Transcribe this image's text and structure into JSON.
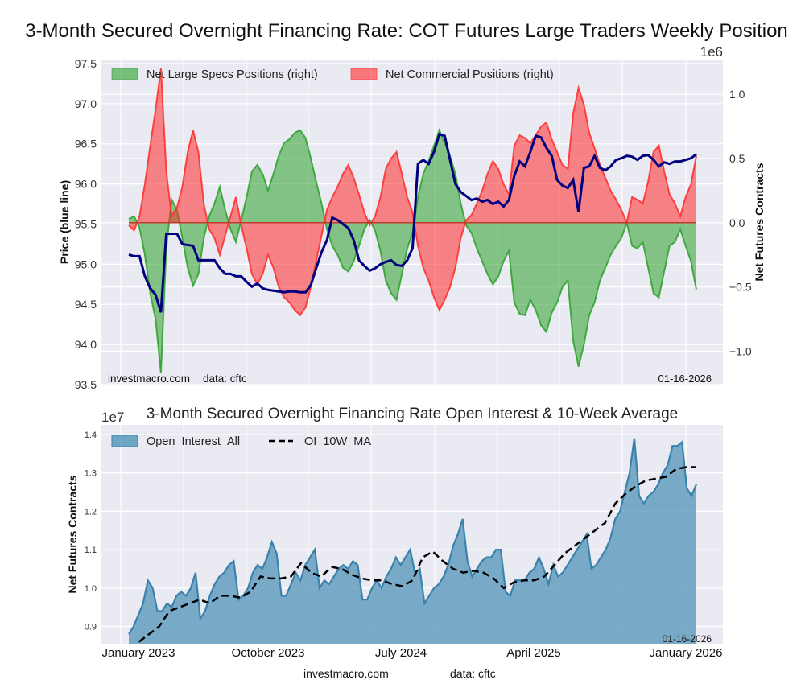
{
  "chart_data": [
    {
      "type": "area",
      "title": "3-Month Secured Overnight Financing Rate: COT Futures Large Traders Weekly Position",
      "ylabel_left": "Price (blue line)",
      "ylabel_right": "Net Futures Contracts",
      "right_axis_offset_label": "1e6",
      "ylim_left": [
        93.5,
        97.55
      ],
      "ylim_right": [
        -1.26,
        1.27
      ],
      "yticks_left": [
        "97.5",
        "97.0",
        "96.5",
        "96.0",
        "95.5",
        "95.0",
        "94.5",
        "94.0",
        "93.5"
      ],
      "yticks_right": [
        "1.0",
        "0.5",
        "0.0",
        "−0.5",
        "−1.0"
      ],
      "watermark": "investmacro.com",
      "source": "data: cftc",
      "date_label": "01-16-2026",
      "legend": [
        {
          "label": "Net Large Specs Positions (right)",
          "color": "#2ca02c"
        },
        {
          "label": "Net Commercial Positions (right)",
          "color": "#ff2a2a"
        }
      ],
      "x_range": [
        "2022-12-20",
        "2026-01-16"
      ],
      "series": [
        {
          "name": "Net Large Specs Positions",
          "unit": "1e6 contracts",
          "values": [
            0.03,
            0.05,
            -0.04,
            -0.25,
            -0.55,
            -0.75,
            -1.17,
            -0.2,
            0.18,
            0.1,
            -0.12,
            -0.35,
            -0.49,
            -0.4,
            -0.12,
            0.05,
            0.15,
            0.28,
            0.1,
            -0.05,
            -0.15,
            0.02,
            0.2,
            0.4,
            0.45,
            0.38,
            0.25,
            0.38,
            0.52,
            0.62,
            0.65,
            0.7,
            0.72,
            0.66,
            0.5,
            0.32,
            0.15,
            -0.05,
            -0.18,
            -0.25,
            -0.35,
            -0.38,
            -0.3,
            -0.18,
            -0.05,
            0.02,
            -0.06,
            -0.22,
            -0.45,
            -0.55,
            -0.6,
            -0.4,
            -0.2,
            -0.08,
            0.2,
            0.38,
            0.48,
            0.6,
            0.72,
            0.62,
            0.52,
            0.38,
            0.15,
            -0.02,
            -0.08,
            -0.2,
            -0.3,
            -0.4,
            -0.48,
            -0.42,
            -0.3,
            -0.22,
            -0.62,
            -0.71,
            -0.72,
            -0.6,
            -0.68,
            -0.8,
            -0.85,
            -0.7,
            -0.62,
            -0.5,
            -0.45,
            -0.92,
            -1.12,
            -0.95,
            -0.72,
            -0.62,
            -0.45,
            -0.35,
            -0.25,
            -0.18,
            -0.12,
            0.0,
            -0.18,
            -0.2,
            -0.15,
            -0.35,
            -0.55,
            -0.58,
            -0.38,
            -0.18,
            -0.15,
            -0.05,
            -0.18,
            -0.3,
            -0.52
          ]
        },
        {
          "name": "Net Commercial Positions",
          "unit": "1e6 contracts",
          "values": [
            -0.02,
            -0.06,
            0.05,
            0.3,
            0.6,
            0.88,
            1.2,
            0.4,
            0.05,
            0.12,
            0.28,
            0.55,
            0.72,
            0.55,
            0.15,
            -0.05,
            -0.12,
            -0.25,
            -0.1,
            0.05,
            0.2,
            -0.02,
            -0.2,
            -0.4,
            -0.48,
            -0.4,
            -0.25,
            -0.35,
            -0.5,
            -0.58,
            -0.62,
            -0.68,
            -0.72,
            -0.66,
            -0.5,
            -0.3,
            -0.1,
            0.1,
            0.2,
            0.28,
            0.38,
            0.45,
            0.35,
            0.22,
            0.08,
            -0.02,
            0.05,
            0.2,
            0.42,
            0.5,
            0.55,
            0.38,
            0.2,
            0.08,
            -0.18,
            -0.35,
            -0.45,
            -0.58,
            -0.68,
            -0.6,
            -0.5,
            -0.35,
            -0.12,
            0.02,
            0.06,
            0.15,
            0.25,
            0.38,
            0.48,
            0.42,
            0.3,
            0.22,
            0.6,
            0.68,
            0.66,
            0.62,
            0.68,
            0.75,
            0.78,
            0.65,
            0.55,
            0.45,
            0.42,
            0.85,
            1.05,
            0.92,
            0.7,
            0.58,
            0.45,
            0.35,
            0.25,
            0.18,
            0.1,
            0.0,
            0.2,
            0.18,
            0.15,
            0.32,
            0.55,
            0.6,
            0.4,
            0.22,
            0.15,
            0.05,
            0.2,
            0.3,
            0.52
          ]
        },
        {
          "name": "Price",
          "axis": "left",
          "values": [
            95.12,
            95.1,
            95.1,
            94.85,
            94.7,
            94.62,
            94.4,
            95.38,
            95.38,
            95.38,
            95.25,
            95.24,
            95.23,
            95.05,
            95.05,
            95.05,
            95.05,
            94.95,
            94.88,
            94.88,
            94.85,
            94.85,
            94.78,
            94.72,
            94.76,
            94.7,
            94.68,
            94.67,
            94.66,
            94.65,
            94.66,
            94.66,
            94.65,
            94.65,
            94.74,
            94.95,
            95.15,
            95.3,
            95.58,
            95.55,
            95.5,
            95.45,
            95.3,
            95.05,
            94.98,
            94.92,
            94.95,
            95.0,
            95.03,
            95.05,
            94.99,
            94.98,
            95.05,
            95.2,
            96.25,
            96.3,
            96.25,
            96.4,
            96.62,
            96.6,
            96.3,
            96.0,
            95.9,
            95.85,
            95.8,
            95.82,
            95.78,
            95.8,
            95.75,
            95.78,
            95.72,
            95.8,
            96.1,
            96.28,
            96.22,
            96.4,
            96.6,
            96.58,
            96.45,
            96.35,
            96.05,
            95.98,
            95.95,
            96.05,
            95.65,
            96.2,
            96.22,
            96.35,
            96.2,
            96.17,
            96.22,
            96.3,
            96.32,
            96.35,
            96.34,
            96.3,
            96.35,
            96.36,
            96.3,
            96.22,
            96.27,
            96.25,
            96.28,
            96.28,
            96.3,
            96.32,
            96.37
          ]
        }
      ]
    },
    {
      "type": "area",
      "title": "3-Month Secured Overnight Financing Rate Open Interest & 10-Week Average",
      "ylabel": "Net Futures Contracts",
      "axis_offset_label": "1e7",
      "ylim": [
        0.855,
        1.425
      ],
      "yticks": [
        "1.4",
        "1.3",
        "1.2",
        "1.1",
        "1.0",
        "0.9"
      ],
      "xticks": [
        "January 2023",
        "October 2023",
        "July 2024",
        "April 2025",
        "January 2026"
      ],
      "date_label": "01-16-2026",
      "legend": [
        {
          "label": "Open_Interest_All",
          "color": "#5b9abd"
        },
        {
          "label": "OI_10W_MA",
          "color": "#000000"
        }
      ],
      "x_range": [
        "2022-12-20",
        "2026-01-16"
      ],
      "series": [
        {
          "name": "Open_Interest_All",
          "unit": "1e7 contracts",
          "values": [
            0.88,
            0.9,
            0.93,
            0.96,
            1.02,
            1.0,
            0.94,
            0.94,
            0.96,
            0.95,
            0.98,
            0.99,
            0.98,
            1.0,
            1.04,
            0.92,
            0.94,
            0.98,
            1.01,
            1.03,
            1.04,
            1.06,
            1.07,
            0.97,
            0.98,
            1.0,
            1.04,
            1.06,
            1.05,
            1.08,
            1.12,
            1.09,
            0.98,
            0.98,
            1.01,
            1.04,
            1.02,
            1.06,
            1.08,
            1.1,
            1.0,
            1.02,
            1.01,
            1.03,
            1.05,
            1.06,
            1.05,
            1.07,
            1.06,
            0.97,
            0.97,
            1.0,
            1.02,
            1.0,
            1.03,
            1.05,
            1.08,
            1.06,
            1.08,
            1.1,
            1.04,
            1.05,
            0.96,
            0.98,
            1.0,
            1.01,
            1.03,
            1.06,
            1.11,
            1.14,
            1.18,
            1.07,
            1.03,
            1.05,
            1.07,
            1.08,
            1.08,
            1.1,
            1.1,
            0.99,
            0.98,
            1.02,
            1.02,
            1.02,
            1.04,
            1.05,
            1.08,
            1.05,
            1.01,
            1.06,
            1.03,
            1.04,
            1.06,
            1.08,
            1.1,
            1.12,
            1.14,
            1.05,
            1.06,
            1.08,
            1.1,
            1.13,
            1.18,
            1.2,
            1.25,
            1.3,
            1.39,
            1.24,
            1.22,
            1.24,
            1.25,
            1.27,
            1.3,
            1.32,
            1.37,
            1.37,
            1.38,
            1.26,
            1.24,
            1.27
          ]
        },
        {
          "name": "OI_10W_MA",
          "unit": "1e7 contracts",
          "values": [
            null,
            0.86,
            0.88,
            0.9,
            0.94,
            0.95,
            0.96,
            0.97,
            0.96,
            0.98,
            0.98,
            0.975,
            0.99,
            1.03,
            1.025,
            1.025,
            1.03,
            1.065,
            1.04,
            1.03,
            1.055,
            1.05,
            1.035,
            1.025,
            1.02,
            1.02,
            1.01,
            1.005,
            1.02,
            1.08,
            1.095,
            1.07,
            1.05,
            1.04,
            1.045,
            1.04,
            1.025,
            1.0,
            1.015,
            1.02,
            1.02,
            1.03,
            1.06,
            1.09,
            1.11,
            1.13,
            1.15,
            1.17,
            1.22,
            1.245,
            1.265,
            1.28,
            1.285,
            1.29,
            1.31,
            1.315,
            1.315
          ]
        }
      ]
    }
  ],
  "footer": {
    "watermark": "investmacro.com",
    "source": "data: cftc"
  }
}
